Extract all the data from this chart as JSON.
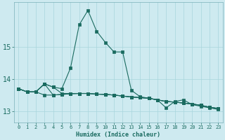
{
  "xlabel": "Humidex (Indice chaleur)",
  "background_color": "#ceeaf0",
  "grid_color": "#a8d5dc",
  "line_color": "#1a6b60",
  "xlim": [
    -0.5,
    23.5
  ],
  "ylim": [
    12.65,
    16.4
  ],
  "yticks": [
    13,
    14,
    15
  ],
  "xticks": [
    0,
    1,
    2,
    3,
    4,
    5,
    6,
    7,
    8,
    9,
    10,
    11,
    12,
    13,
    14,
    15,
    16,
    17,
    18,
    19,
    20,
    21,
    22,
    23
  ],
  "line_peak": [
    13.7,
    13.6,
    13.6,
    13.85,
    13.75,
    13.7,
    14.35,
    15.7,
    16.15,
    15.5,
    15.15,
    14.85,
    14.85,
    13.65,
    13.45,
    13.4,
    13.35,
    13.1,
    13.3,
    13.35,
    13.2,
    13.15,
    13.1,
    13.05
  ],
  "line_a": [
    13.7,
    13.6,
    13.6,
    13.85,
    13.75,
    13.55,
    13.55,
    13.55,
    13.55,
    13.53,
    13.52,
    13.5,
    13.47,
    13.44,
    13.42,
    13.4,
    13.35,
    13.3,
    13.28,
    13.25,
    13.22,
    13.18,
    13.12,
    13.08
  ],
  "line_b": [
    13.7,
    13.6,
    13.6,
    13.85,
    13.5,
    13.52,
    13.54,
    13.55,
    13.55,
    13.53,
    13.52,
    13.5,
    13.47,
    13.44,
    13.42,
    13.4,
    13.35,
    13.3,
    13.28,
    13.25,
    13.22,
    13.18,
    13.12,
    13.08
  ],
  "line_c": [
    13.7,
    13.6,
    13.6,
    13.5,
    13.5,
    13.52,
    13.54,
    13.55,
    13.55,
    13.53,
    13.52,
    13.5,
    13.47,
    13.44,
    13.42,
    13.4,
    13.35,
    13.3,
    13.28,
    13.25,
    13.22,
    13.18,
    13.12,
    13.08
  ]
}
